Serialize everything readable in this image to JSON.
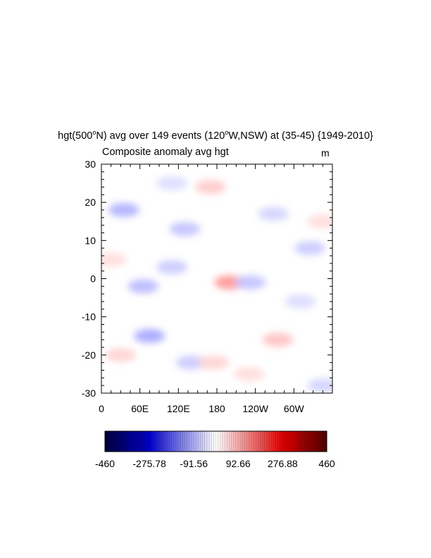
{
  "title": {
    "var": "hgt(500",
    "sup1": "o",
    "mid": "N) avg over 149 events (120",
    "sup2": "o",
    "end": "W,NSW) at (35-45) {1949-2010}"
  },
  "subtitle": "Composite anomaly avg hgt",
  "units": "m",
  "chart_data": {
    "type": "heatmap",
    "title": "hgt(500oN) avg over 149 events (120oW,NSW) at (35-45) {1949-2010}",
    "subtitle": "Composite anomaly avg hgt",
    "units": "m",
    "x_ticks": [
      "0",
      "60E",
      "120E",
      "180",
      "120W",
      "60W"
    ],
    "x_tick_values": [
      0,
      60,
      120,
      180,
      240,
      300
    ],
    "xlim": [
      0,
      360
    ],
    "y_ticks": [
      "30",
      "20",
      "10",
      "0",
      "-10",
      "-20",
      "-30"
    ],
    "y_tick_values": [
      30,
      20,
      10,
      0,
      -10,
      -20,
      -30
    ],
    "ylim": [
      -30,
      30
    ],
    "colorbar": {
      "labels": [
        "-460",
        "-275.78",
        "-91.56",
        "92.66",
        "276.88",
        "460"
      ],
      "min": -460,
      "max": 460
    },
    "features": [
      {
        "lon": 200,
        "lat": -1,
        "value": 120
      },
      {
        "lon": 232,
        "lat": -1,
        "value": -70
      },
      {
        "lon": 35,
        "lat": 18,
        "value": -90
      },
      {
        "lon": 65,
        "lat": -2,
        "value": -80
      },
      {
        "lon": 75,
        "lat": -15,
        "value": -100
      },
      {
        "lon": 110,
        "lat": 3,
        "value": -60
      },
      {
        "lon": 130,
        "lat": 13,
        "value": -70
      },
      {
        "lon": 140,
        "lat": -22,
        "value": -60
      },
      {
        "lon": 110,
        "lat": 25,
        "value": -40
      },
      {
        "lon": 170,
        "lat": 24,
        "value": 60
      },
      {
        "lon": 275,
        "lat": -16,
        "value": 70
      },
      {
        "lon": 325,
        "lat": 8,
        "value": -60
      },
      {
        "lon": 268,
        "lat": 17,
        "value": -50
      },
      {
        "lon": 310,
        "lat": -6,
        "value": -40
      },
      {
        "lon": 175,
        "lat": -22,
        "value": 50
      },
      {
        "lon": 230,
        "lat": -25,
        "value": 40
      },
      {
        "lon": 30,
        "lat": -20,
        "value": 50
      },
      {
        "lon": 345,
        "lat": -28,
        "value": -50
      },
      {
        "lon": 15,
        "lat": 5,
        "value": 40
      },
      {
        "lon": 345,
        "lat": 15,
        "value": 40
      }
    ]
  }
}
